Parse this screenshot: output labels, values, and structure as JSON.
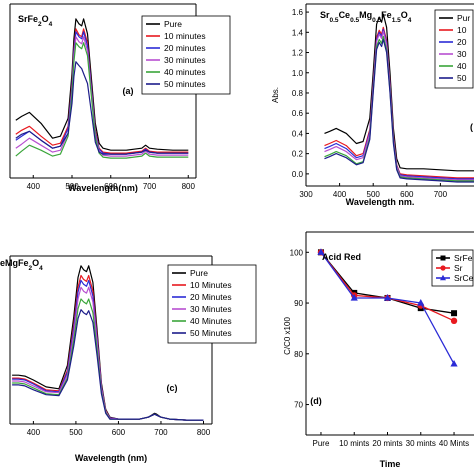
{
  "chart_data": [
    {
      "id": "a",
      "type": "line",
      "panel_label": "(a)",
      "title": "SrFe2O4",
      "title_parts": [
        [
          "SrFe",
          false
        ],
        [
          "2",
          true
        ],
        [
          "O",
          false
        ],
        [
          "4",
          true
        ]
      ],
      "xlabel": "Wavelength(nm)",
      "ylabel": "",
      "xlim": [
        340,
        820
      ],
      "ylim": [
        0,
        1.75
      ],
      "xticks": [
        400,
        500,
        600,
        700,
        800
      ],
      "yticks": [],
      "legend": "top-right",
      "x": [
        355,
        370,
        390,
        420,
        450,
        470,
        490,
        500,
        505,
        510,
        518,
        525,
        530,
        540,
        550,
        560,
        570,
        580,
        600,
        640,
        660,
        680,
        690,
        700,
        720,
        760,
        800
      ],
      "series": [
        {
          "name": "Pure",
          "color": "#000000",
          "values": [
            0.58,
            0.62,
            0.66,
            0.55,
            0.4,
            0.42,
            0.6,
            1.05,
            1.4,
            1.6,
            1.55,
            1.53,
            1.6,
            1.45,
            1.0,
            0.55,
            0.35,
            0.3,
            0.28,
            0.28,
            0.29,
            0.3,
            0.33,
            0.3,
            0.29,
            0.28,
            0.28
          ]
        },
        {
          "name": "10 minutes",
          "color": "#e8191f",
          "values": [
            0.44,
            0.48,
            0.52,
            0.42,
            0.33,
            0.35,
            0.52,
            0.95,
            1.3,
            1.5,
            1.44,
            1.42,
            1.5,
            1.36,
            0.92,
            0.48,
            0.3,
            0.26,
            0.25,
            0.25,
            0.26,
            0.27,
            0.3,
            0.27,
            0.26,
            0.26,
            0.26
          ]
        },
        {
          "name": "20 minutes",
          "color": "#2b2bd6",
          "values": [
            0.38,
            0.42,
            0.47,
            0.38,
            0.3,
            0.32,
            0.5,
            0.92,
            1.27,
            1.47,
            1.42,
            1.4,
            1.47,
            1.33,
            0.9,
            0.46,
            0.29,
            0.25,
            0.24,
            0.24,
            0.25,
            0.26,
            0.29,
            0.26,
            0.25,
            0.25,
            0.25
          ]
        },
        {
          "name": "30 minutes",
          "color": "#b84fd0",
          "values": [
            0.3,
            0.34,
            0.4,
            0.33,
            0.26,
            0.28,
            0.45,
            0.88,
            1.22,
            1.42,
            1.37,
            1.35,
            1.42,
            1.28,
            0.86,
            0.44,
            0.27,
            0.23,
            0.22,
            0.22,
            0.23,
            0.24,
            0.27,
            0.24,
            0.23,
            0.23,
            0.23
          ]
        },
        {
          "name": "40 minutes",
          "color": "#3aa53a",
          "values": [
            0.22,
            0.27,
            0.33,
            0.28,
            0.22,
            0.24,
            0.42,
            0.84,
            1.17,
            1.36,
            1.32,
            1.3,
            1.36,
            1.23,
            0.82,
            0.41,
            0.25,
            0.21,
            0.2,
            0.2,
            0.21,
            0.22,
            0.25,
            0.22,
            0.21,
            0.21,
            0.21
          ]
        },
        {
          "name": "50 minutes",
          "color": "#1d1d8a",
          "values": [
            0.4,
            0.44,
            0.47,
            0.38,
            0.3,
            0.32,
            0.45,
            0.75,
            1.02,
            1.17,
            1.13,
            1.1,
            1.05,
            0.95,
            0.66,
            0.36,
            0.26,
            0.24,
            0.24,
            0.24,
            0.25,
            0.26,
            0.28,
            0.26,
            0.25,
            0.25,
            0.25
          ]
        }
      ]
    },
    {
      "id": "b",
      "type": "line",
      "panel_label": "(",
      "title": "Sr0.5Ce0.5Mg0.5Fe1.5O4",
      "title_parts": [
        [
          "Sr",
          false
        ],
        [
          "0.5",
          true
        ],
        [
          "Ce",
          false
        ],
        [
          "0.5",
          true
        ],
        [
          "Mg",
          false
        ],
        [
          "0.5",
          true
        ],
        [
          "Fe",
          false
        ],
        [
          "1.5",
          true
        ],
        [
          "O",
          false
        ],
        [
          "4",
          true
        ]
      ],
      "xlabel": "Wavelength nm.",
      "ylabel": "Abs.",
      "xlim": [
        300,
        800
      ],
      "ylim": [
        -0.12,
        1.68
      ],
      "xticks": [
        300,
        400,
        500,
        600,
        700
      ],
      "yticks": [
        0.0,
        0.2,
        0.4,
        0.6,
        0.8,
        1.0,
        1.2,
        1.4,
        1.6
      ],
      "ytick_labels": [
        "0.0",
        "0.2",
        "0.4",
        "0.6",
        "0.8",
        "1.0",
        "1.2",
        "1.4",
        "1.6"
      ],
      "legend": "top-right",
      "legend_labels_visible": [
        "Pur",
        "10",
        "20",
        "30",
        "40",
        "50"
      ],
      "x": [
        355,
        370,
        390,
        420,
        450,
        470,
        490,
        500,
        510,
        518,
        525,
        530,
        540,
        550,
        560,
        570,
        580,
        600,
        650,
        700,
        750,
        800
      ],
      "series": [
        {
          "name": "Pur",
          "color": "#000000",
          "values": [
            0.4,
            0.42,
            0.45,
            0.4,
            0.3,
            0.32,
            0.55,
            1.0,
            1.48,
            1.55,
            1.5,
            1.58,
            1.45,
            1.0,
            0.45,
            0.15,
            0.06,
            0.05,
            0.05,
            0.04,
            0.03,
            0.03
          ]
        },
        {
          "name": "10",
          "color": "#e8191f",
          "values": [
            0.28,
            0.3,
            0.33,
            0.28,
            0.18,
            0.2,
            0.44,
            0.9,
            1.35,
            1.42,
            1.38,
            1.45,
            1.32,
            0.9,
            0.38,
            0.09,
            0.0,
            -0.01,
            -0.02,
            -0.03,
            -0.04,
            -0.04
          ]
        },
        {
          "name": "20",
          "color": "#2b2bd6",
          "values": [
            0.25,
            0.27,
            0.3,
            0.25,
            0.16,
            0.18,
            0.42,
            0.88,
            1.33,
            1.4,
            1.36,
            1.43,
            1.3,
            0.88,
            0.36,
            0.08,
            -0.01,
            -0.02,
            -0.03,
            -0.04,
            -0.05,
            -0.05
          ]
        },
        {
          "name": "30",
          "color": "#b84fd0",
          "values": [
            0.22,
            0.24,
            0.27,
            0.22,
            0.14,
            0.16,
            0.4,
            0.86,
            1.31,
            1.38,
            1.34,
            1.41,
            1.28,
            0.86,
            0.35,
            0.07,
            -0.02,
            -0.03,
            -0.04,
            -0.05,
            -0.06,
            -0.06
          ]
        },
        {
          "name": "40",
          "color": "#3aa53a",
          "values": [
            0.17,
            0.19,
            0.22,
            0.18,
            0.1,
            0.12,
            0.36,
            0.82,
            1.26,
            1.33,
            1.29,
            1.36,
            1.23,
            0.82,
            0.32,
            0.05,
            -0.03,
            -0.04,
            -0.05,
            -0.06,
            -0.07,
            -0.07
          ]
        },
        {
          "name": "50",
          "color": "#1d1d8a",
          "values": [
            0.15,
            0.17,
            0.2,
            0.16,
            0.09,
            0.11,
            0.34,
            0.8,
            1.23,
            1.3,
            1.26,
            1.33,
            1.2,
            0.8,
            0.3,
            0.04,
            -0.04,
            -0.05,
            -0.06,
            -0.07,
            -0.08,
            -0.08
          ]
        }
      ]
    },
    {
      "id": "c",
      "type": "line",
      "panel_label": "(c)",
      "title": "eMgFe2O4",
      "title_parts": [
        [
          "eMgFe",
          false
        ],
        [
          "2",
          true
        ],
        [
          "O",
          false
        ],
        [
          "4",
          true
        ]
      ],
      "xlabel": "Wavelength (nm)",
      "ylabel": "",
      "xlim": [
        345,
        820
      ],
      "ylim": [
        0,
        1.72
      ],
      "xticks": [
        400,
        500,
        600,
        700,
        800
      ],
      "yticks": [],
      "legend": "top-right",
      "x": [
        350,
        365,
        380,
        400,
        430,
        460,
        480,
        495,
        505,
        512,
        518,
        525,
        530,
        540,
        550,
        560,
        570,
        580,
        600,
        650,
        670,
        685,
        690,
        700,
        720,
        760,
        800
      ],
      "series": [
        {
          "name": "Pure",
          "color": "#000000",
          "values": [
            0.5,
            0.5,
            0.49,
            0.45,
            0.38,
            0.36,
            0.6,
            1.1,
            1.5,
            1.62,
            1.58,
            1.56,
            1.62,
            1.45,
            0.95,
            0.42,
            0.15,
            0.07,
            0.05,
            0.05,
            0.07,
            0.11,
            0.1,
            0.07,
            0.05,
            0.04,
            0.04
          ]
        },
        {
          "name": "10 Minutes",
          "color": "#e8191f",
          "values": [
            0.47,
            0.47,
            0.46,
            0.42,
            0.35,
            0.34,
            0.55,
            1.02,
            1.4,
            1.52,
            1.48,
            1.46,
            1.52,
            1.36,
            0.89,
            0.39,
            0.14,
            0.06,
            0.05,
            0.05,
            0.07,
            0.1,
            0.09,
            0.07,
            0.05,
            0.04,
            0.04
          ]
        },
        {
          "name": "20 Minutes",
          "color": "#2b2bd6",
          "values": [
            0.46,
            0.46,
            0.45,
            0.41,
            0.34,
            0.33,
            0.53,
            0.98,
            1.35,
            1.47,
            1.43,
            1.41,
            1.47,
            1.31,
            0.86,
            0.38,
            0.13,
            0.06,
            0.05,
            0.05,
            0.07,
            0.1,
            0.09,
            0.07,
            0.05,
            0.04,
            0.04
          ]
        },
        {
          "name": "30 Minutes",
          "color": "#b84fd0",
          "values": [
            0.44,
            0.44,
            0.43,
            0.39,
            0.33,
            0.32,
            0.5,
            0.93,
            1.28,
            1.4,
            1.36,
            1.34,
            1.4,
            1.25,
            0.82,
            0.36,
            0.13,
            0.06,
            0.05,
            0.05,
            0.07,
            0.1,
            0.09,
            0.07,
            0.05,
            0.04,
            0.04
          ]
        },
        {
          "name": "40 Minutes",
          "color": "#3aa53a",
          "values": [
            0.42,
            0.42,
            0.41,
            0.37,
            0.31,
            0.3,
            0.47,
            0.86,
            1.18,
            1.28,
            1.25,
            1.23,
            1.28,
            1.14,
            0.75,
            0.33,
            0.12,
            0.05,
            0.05,
            0.05,
            0.07,
            0.1,
            0.09,
            0.07,
            0.05,
            0.04,
            0.04
          ]
        },
        {
          "name": "50 Minutes",
          "color": "#1d1d8a",
          "values": [
            0.4,
            0.4,
            0.39,
            0.35,
            0.3,
            0.29,
            0.45,
            0.8,
            1.08,
            1.17,
            1.14,
            1.12,
            1.16,
            1.04,
            0.69,
            0.31,
            0.11,
            0.05,
            0.05,
            0.05,
            0.07,
            0.1,
            0.09,
            0.07,
            0.05,
            0.04,
            0.04
          ]
        }
      ]
    },
    {
      "id": "d",
      "type": "line",
      "panel_label": "(d)",
      "title": "Acid Red",
      "xlabel": "Time",
      "ylabel": "C/C0 x100",
      "ylim": [
        64,
        104
      ],
      "yticks": [
        70,
        80,
        90,
        100
      ],
      "ytick_labels": [
        "70",
        "80",
        "90",
        "100"
      ],
      "categories": [
        "Pure",
        "10 mints",
        "20 mints",
        "30 mints",
        "40 Mints"
      ],
      "legend": "top-right",
      "legend_labels_visible": [
        "SrFe",
        "Sr",
        "SrCeM"
      ],
      "series": [
        {
          "name": "SrFe",
          "color": "#000000",
          "marker": "square",
          "values": [
            100,
            92,
            91,
            89,
            88
          ]
        },
        {
          "name": "Sr",
          "color": "#e8191f",
          "marker": "circle",
          "values": [
            100,
            91.5,
            91,
            89.5,
            86.5
          ]
        },
        {
          "name": "SrCeM",
          "color": "#2b2bd6",
          "marker": "triangle",
          "values": [
            100,
            91,
            91,
            90,
            78
          ]
        }
      ]
    }
  ]
}
